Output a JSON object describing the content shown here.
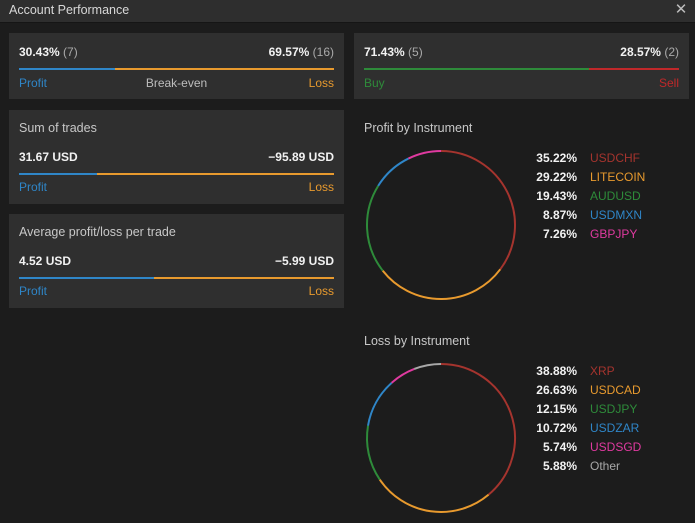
{
  "window": {
    "title": "Account Performance"
  },
  "win_loss": {
    "profit_value": "30.43%",
    "profit_count": "(7)",
    "loss_value": "69.57%",
    "loss_count": "(16)",
    "profit_label": "Profit",
    "breakeven_label": "Break-even",
    "loss_label": "Loss",
    "profit_share": 0.3043
  },
  "buy_sell": {
    "buy_value": "71.43%",
    "buy_count": "(5)",
    "sell_value": "28.57%",
    "sell_count": "(2)",
    "buy_label": "Buy",
    "sell_label": "Sell",
    "buy_share": 0.7143
  },
  "sum_of_trades": {
    "title": "Sum of trades",
    "profit_amount": "31.67 USD",
    "loss_amount": "−95.89 USD",
    "profit_label": "Profit",
    "loss_label": "Loss",
    "profit_share": 0.248
  },
  "avg_per_trade": {
    "title": "Average profit/loss per trade",
    "profit_amount": "4.52 USD",
    "loss_amount": "−5.99 USD",
    "profit_label": "Profit",
    "loss_label": "Loss",
    "profit_share": 0.43
  },
  "profit_by_instrument": {
    "title": "Profit by Instrument",
    "items": [
      {
        "pct": "35.22%",
        "name": "USDCHF",
        "value": 35.22,
        "color": "#a5342e"
      },
      {
        "pct": "29.22%",
        "name": "LITECOIN",
        "value": 29.22,
        "color": "#e89a2e"
      },
      {
        "pct": "19.43%",
        "name": "AUDUSD",
        "value": 19.43,
        "color": "#2e8b3a"
      },
      {
        "pct": "8.87%",
        "name": "USDMXN",
        "value": 8.87,
        "color": "#2f86c8"
      },
      {
        "pct": "7.26%",
        "name": "GBPJPY",
        "value": 7.26,
        "color": "#e03aa0"
      }
    ]
  },
  "loss_by_instrument": {
    "title": "Loss by Instrument",
    "items": [
      {
        "pct": "38.88%",
        "name": "XRP",
        "value": 38.88,
        "color": "#a5342e"
      },
      {
        "pct": "26.63%",
        "name": "USDCAD",
        "value": 26.63,
        "color": "#e89a2e"
      },
      {
        "pct": "12.15%",
        "name": "USDJPY",
        "value": 12.15,
        "color": "#2e8b3a"
      },
      {
        "pct": "10.72%",
        "name": "USDZAR",
        "value": 10.72,
        "color": "#2f86c8"
      },
      {
        "pct": "5.74%",
        "name": "USDSGD",
        "value": 5.74,
        "color": "#e03aa0"
      },
      {
        "pct": "5.88%",
        "name": "Other",
        "value": 5.88,
        "color": "#a8a8a8"
      }
    ]
  },
  "colors": {
    "profit": "#2f86c8",
    "loss": "#e89a2e",
    "buy": "#2e8b3a",
    "sell": "#c0282a"
  }
}
